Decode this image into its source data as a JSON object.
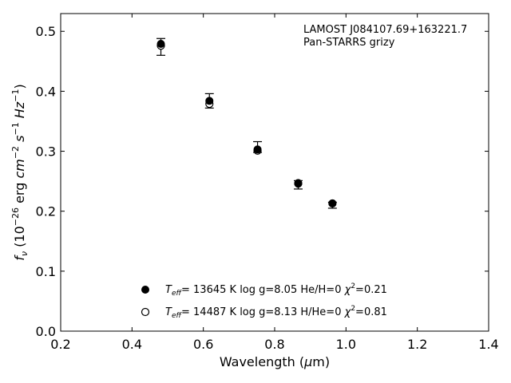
{
  "chart_data": {
    "type": "scatter",
    "title": "",
    "xlabel": "Wavelength (μm)",
    "ylabel": "f_ν (10^-26 erg cm^-2 s^-1 Hz^-1)",
    "xlim": [
      0.2,
      1.4
    ],
    "ylim": [
      0.0,
      0.5296
    ],
    "xticks": [
      0.2,
      0.4,
      0.6,
      0.8,
      1.0,
      1.2,
      1.4
    ],
    "xtick_labels": [
      "0.2",
      "0.4",
      "0.6",
      "0.8",
      "1.0",
      "1.2",
      "1.4"
    ],
    "yticks": [
      0.0,
      0.1,
      0.2,
      0.3,
      0.4,
      0.5
    ],
    "ytick_labels": [
      "0.0",
      "0.1",
      "0.2",
      "0.3",
      "0.4",
      "0.5"
    ],
    "grid": false,
    "annotations": [
      "LAMOST J084107.69+163221.7",
      "Pan-STARRS grizy"
    ],
    "observed": {
      "x": [
        0.481,
        0.617,
        0.752,
        0.866,
        0.962
      ],
      "y": [
        0.474,
        0.384,
        0.307,
        0.244,
        0.21
      ],
      "yerr": [
        0.014,
        0.012,
        0.009,
        0.007,
        0.005
      ]
    },
    "series": [
      {
        "name": "T_eff= 13645 K  log g=8.05  He/H=0  χ²=0.21",
        "marker": "filled-circle",
        "color": "#000000",
        "x": [
          0.481,
          0.617,
          0.752,
          0.866,
          0.962
        ],
        "y": [
          0.479,
          0.384,
          0.303,
          0.247,
          0.213
        ]
      },
      {
        "name": "T_eff= 14487 K  log g=8.13  H/He=0  χ²=0.81",
        "marker": "open-circle",
        "color": "#000000",
        "x": [
          0.481,
          0.617,
          0.752,
          0.866,
          0.962
        ],
        "y": [
          0.476,
          0.379,
          0.301,
          0.246,
          0.213
        ]
      }
    ],
    "legend": {
      "placement": "lower-center",
      "entries": [
        {
          "teff": "= 13645 K",
          "logg": "log g=8.05",
          "comp": "He/H=0",
          "chi": "=0.21"
        },
        {
          "teff": "= 14487 K",
          "logg": "log g=8.13",
          "comp": "H/He=0",
          "chi": "=0.81"
        }
      ]
    }
  }
}
